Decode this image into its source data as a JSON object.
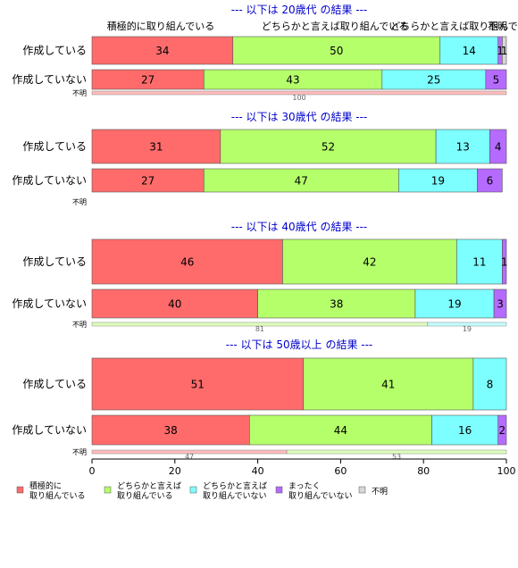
{
  "chart_data": {
    "type": "bar",
    "orientation": "horizontal-stacked-percent",
    "xlim": [
      0,
      100
    ],
    "x_ticks": [
      "0",
      "20",
      "40",
      "60",
      "80",
      "100"
    ],
    "legend_position": "bottom",
    "legend": [
      {
        "label": "積極的に\n取り組んでいる",
        "color": "#ff6b6b"
      },
      {
        "label": "どちらかと言えば\n取り組んでいる",
        "color": "#b5ff6b"
      },
      {
        "label": "どちらかと言えば\n取り組んでいない",
        "color": "#7dffff"
      },
      {
        "label": "まったく\n取り組んでいない",
        "color": "#b56bff"
      },
      {
        "label": "不明",
        "color": "#d8d8d8"
      }
    ],
    "top_header_labels": [
      "積極的に取り組んでいる",
      "どちらかと言えば取り組んでいる",
      "どちらかと言えば取り組んでいない",
      "不明"
    ],
    "panels": [
      {
        "title": "--- 以下は 20歳代 の結果 ---",
        "rows": [
          {
            "label": "作成している",
            "values": [
              34,
              50,
              14,
              1,
              1
            ]
          },
          {
            "label": "作成していない",
            "values": [
              27,
              43,
              25,
              5,
              0
            ]
          }
        ],
        "unknown": {
          "label": "不明",
          "values": [
            100,
            0,
            0,
            0,
            0
          ]
        }
      },
      {
        "title": "--- 以下は 30歳代 の結果 ---",
        "rows": [
          {
            "label": "作成している",
            "values": [
              31,
              52,
              13,
              4,
              0
            ]
          },
          {
            "label": "作成していない",
            "values": [
              27,
              47,
              19,
              6,
              0
            ]
          }
        ],
        "unknown": {
          "label": "不明",
          "values": [
            0,
            0,
            0,
            0,
            0
          ]
        }
      },
      {
        "title": "--- 以下は 40歳代 の結果 ---",
        "rows": [
          {
            "label": "作成している",
            "values": [
              46,
              42,
              11,
              1,
              0
            ]
          },
          {
            "label": "作成していない",
            "values": [
              40,
              38,
              19,
              3,
              0
            ]
          }
        ],
        "unknown": {
          "label": "不明",
          "values": [
            0,
            81,
            19,
            0,
            0
          ]
        }
      },
      {
        "title": "--- 以下は 50歳以上 の結果 ---",
        "rows": [
          {
            "label": "作成している",
            "values": [
              51,
              41,
              8,
              0,
              0
            ]
          },
          {
            "label": "作成していない",
            "values": [
              38,
              44,
              16,
              2,
              0
            ]
          }
        ],
        "unknown": {
          "label": "不明",
          "values": [
            47,
            53,
            0,
            0,
            0
          ]
        }
      }
    ]
  }
}
